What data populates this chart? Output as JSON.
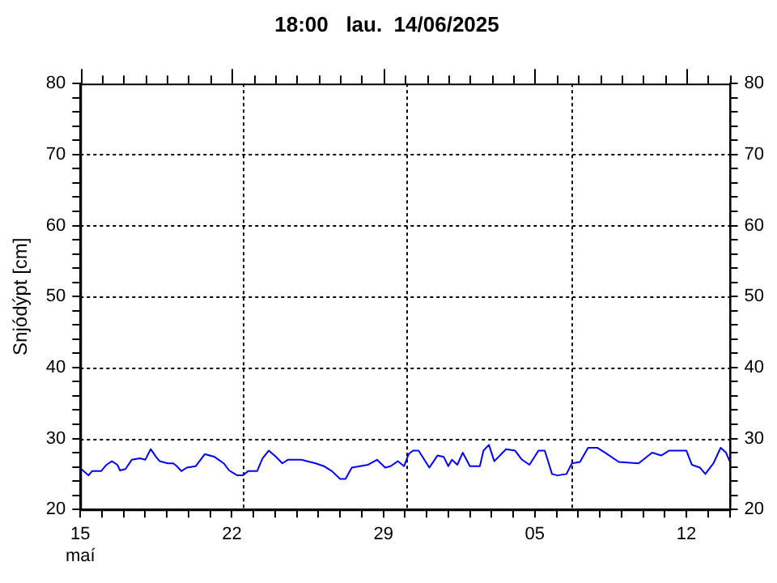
{
  "chart_data": {
    "type": "line",
    "title": "18:00   lau.  14/06/2025",
    "ylabel": "Snjódýpt [cm]",
    "x": [
      "2025-05-15T01:00",
      "2025-05-15T09:00",
      "2025-05-15T13:00",
      "2025-05-15T23:00",
      "2025-05-16T05:00",
      "2025-05-16T11:00",
      "2025-05-16T17:00",
      "2025-05-16T20:00",
      "2025-05-17T02:00",
      "2025-05-17T09:00",
      "2025-05-17T18:00",
      "2025-05-18T00:00",
      "2025-05-18T06:00",
      "2025-05-18T12:00",
      "2025-05-18T16:00",
      "2025-05-19T01:00",
      "2025-05-19T07:00",
      "2025-05-19T11:00",
      "2025-05-19T16:00",
      "2025-05-19T22:00",
      "2025-05-20T08:00",
      "2025-05-20T18:00",
      "2025-05-21T05:00",
      "2025-05-21T15:00",
      "2025-05-21T21:00",
      "2025-05-22T06:00",
      "2025-05-22T12:00",
      "2025-05-22T18:00",
      "2025-05-23T04:00",
      "2025-05-23T10:00",
      "2025-05-23T17:00",
      "2025-05-24T01:00",
      "2025-05-24T08:00",
      "2025-05-24T14:00",
      "2025-05-25T05:00",
      "2025-05-25T21:00",
      "2025-05-26T06:00",
      "2025-05-26T15:00",
      "2025-05-27T00:00",
      "2025-05-27T06:00",
      "2025-05-27T13:00",
      "2025-05-27T22:00",
      "2025-05-28T07:00",
      "2025-05-28T17:00",
      "2025-05-29T02:00",
      "2025-05-29T08:00",
      "2025-05-29T16:00",
      "2025-05-29T23:00",
      "2025-05-30T04:00",
      "2025-05-30T09:00",
      "2025-05-30T15:00",
      "2025-05-31T03:00",
      "2025-05-31T12:00",
      "2025-05-31T19:00",
      "2025-06-01T00:00",
      "2025-06-01T04:00",
      "2025-06-01T10:00",
      "2025-06-01T16:00",
      "2025-06-02T00:00",
      "2025-06-02T11:00",
      "2025-06-02T15:00",
      "2025-06-02T21:00",
      "2025-06-03T03:00",
      "2025-06-03T16:00",
      "2025-06-04T02:00",
      "2025-06-04T09:00",
      "2025-06-04T18:00",
      "2025-06-05T04:00",
      "2025-06-05T11:00",
      "2025-06-05T19:00",
      "2025-06-06T01:00",
      "2025-06-06T11:00",
      "2025-06-06T17:00",
      "2025-06-07T02:00",
      "2025-06-07T11:00",
      "2025-06-07T21:00",
      "2025-06-08T06:00",
      "2025-06-08T21:00",
      "2025-06-09T19:00",
      "2025-06-10T10:00",
      "2025-06-10T20:00",
      "2025-06-11T05:00",
      "2025-06-12T00:00",
      "2025-06-12T06:00",
      "2025-06-12T15:00",
      "2025-06-12T21:00",
      "2025-06-13T06:00",
      "2025-06-13T14:00",
      "2025-06-13T20:00",
      "2025-06-14T00:00"
    ],
    "series": [
      {
        "color": "#0000ff",
        "values": [
          25.7,
          24.8,
          25.4,
          25.4,
          26.3,
          26.8,
          26.3,
          25.5,
          25.7,
          27.0,
          27.2,
          27.0,
          28.5,
          27.4,
          26.8,
          26.5,
          26.5,
          26.1,
          25.4,
          25.9,
          26.1,
          27.8,
          27.4,
          26.5,
          25.5,
          24.8,
          24.8,
          25.4,
          25.4,
          27.2,
          28.3,
          27.4,
          26.5,
          27.0,
          27.0,
          26.5,
          26.1,
          25.4,
          24.3,
          24.3,
          25.9,
          26.1,
          26.3,
          27.0,
          25.9,
          26.1,
          26.8,
          26.1,
          27.8,
          28.3,
          28.3,
          25.9,
          27.6,
          27.4,
          26.1,
          27.0,
          26.3,
          28.0,
          26.1,
          26.1,
          28.3,
          29.1,
          26.8,
          28.5,
          28.3,
          27.1,
          26.3,
          28.3,
          28.3,
          25.0,
          24.8,
          25.0,
          26.5,
          26.7,
          28.7,
          28.7,
          28.0,
          26.7,
          26.5,
          28.0,
          27.6,
          28.3,
          28.3,
          26.3,
          25.9,
          25.0,
          26.5,
          28.7,
          28.0,
          26.8
        ]
      }
    ],
    "xlim": [
      "2025-05-15",
      "2025-06-14"
    ],
    "xticks": [
      {
        "value": "2025-05-15",
        "label": "15\nmaí"
      },
      {
        "value": "2025-05-16",
        "label": null
      },
      {
        "value": "2025-05-17",
        "label": null
      },
      {
        "value": "2025-05-18",
        "label": null
      },
      {
        "value": "2025-05-19",
        "label": null
      },
      {
        "value": "2025-05-20",
        "label": null
      },
      {
        "value": "2025-05-21",
        "label": null
      },
      {
        "value": "2025-05-22",
        "label": "22"
      },
      {
        "value": "2025-05-23",
        "label": null
      },
      {
        "value": "2025-05-24",
        "label": null
      },
      {
        "value": "2025-05-25",
        "label": null
      },
      {
        "value": "2025-05-26",
        "label": null
      },
      {
        "value": "2025-05-27",
        "label": null
      },
      {
        "value": "2025-05-28",
        "label": null
      },
      {
        "value": "2025-05-29",
        "label": "29"
      },
      {
        "value": "2025-05-30",
        "label": null
      },
      {
        "value": "2025-05-31",
        "label": null
      },
      {
        "value": "2025-06-01",
        "label": null
      },
      {
        "value": "2025-06-02",
        "label": null
      },
      {
        "value": "2025-06-03",
        "label": null
      },
      {
        "value": "2025-06-04",
        "label": null
      },
      {
        "value": "2025-06-05",
        "label": "05"
      },
      {
        "value": "2025-06-06",
        "label": null
      },
      {
        "value": "2025-06-07",
        "label": null
      },
      {
        "value": "2025-06-08",
        "label": null
      },
      {
        "value": "2025-06-09",
        "label": null
      },
      {
        "value": "2025-06-10",
        "label": null
      },
      {
        "value": "2025-06-11",
        "label": null
      },
      {
        "value": "2025-06-12",
        "label": "12"
      },
      {
        "value": "2025-06-13",
        "label": null
      },
      {
        "value": "2025-06-14",
        "label": null
      }
    ],
    "ylim": [
      20,
      80
    ],
    "yticks": [
      20,
      {
        "value": 22,
        "label": null
      },
      {
        "value": 24,
        "label": null
      },
      {
        "value": 26,
        "label": null
      },
      {
        "value": 28,
        "label": null
      },
      30,
      {
        "value": 32,
        "label": null
      },
      {
        "value": 34,
        "label": null
      },
      {
        "value": 36,
        "label": null
      },
      {
        "value": 38,
        "label": null
      },
      40,
      {
        "value": 42,
        "label": null
      },
      {
        "value": 44,
        "label": null
      },
      {
        "value": 46,
        "label": null
      },
      {
        "value": 48,
        "label": null
      },
      50,
      {
        "value": 52,
        "label": null
      },
      {
        "value": 54,
        "label": null
      },
      {
        "value": 56,
        "label": null
      },
      {
        "value": 58,
        "label": null
      },
      60,
      {
        "value": 62,
        "label": null
      },
      {
        "value": 64,
        "label": null
      },
      {
        "value": 66,
        "label": null
      },
      {
        "value": 68,
        "label": null
      },
      70,
      {
        "value": 72,
        "label": null
      },
      {
        "value": 74,
        "label": null
      },
      {
        "value": 76,
        "label": null
      },
      {
        "value": 78,
        "label": null
      },
      80
    ],
    "y2lim": [
      20,
      80
    ],
    "y2ticks": [
      20,
      {
        "value": 22,
        "label": null
      },
      {
        "value": 24,
        "label": null
      },
      {
        "value": 26,
        "label": null
      },
      {
        "value": 28,
        "label": null
      },
      30,
      {
        "value": 32,
        "label": null
      },
      {
        "value": 34,
        "label": null
      },
      {
        "value": 36,
        "label": null
      },
      {
        "value": 38,
        "label": null
      },
      40,
      {
        "value": 42,
        "label": null
      },
      {
        "value": 44,
        "label": null
      },
      {
        "value": 46,
        "label": null
      },
      {
        "value": 48,
        "label": null
      },
      50,
      {
        "value": 52,
        "label": null
      },
      {
        "value": 54,
        "label": null
      },
      {
        "value": 56,
        "label": null
      },
      {
        "value": 58,
        "label": null
      },
      60,
      {
        "value": 62,
        "label": null
      },
      {
        "value": 64,
        "label": null
      },
      {
        "value": 66,
        "label": null
      },
      {
        "value": 68,
        "label": null
      },
      70,
      {
        "value": 72,
        "label": null
      },
      {
        "value": 74,
        "label": null
      },
      {
        "value": 76,
        "label": null
      },
      {
        "value": 78,
        "label": null
      },
      80
    ],
    "ref_lines": [
      {
        "axis": "x",
        "value": "2025-05-22T12:00",
        "line_style": "dotted",
        "color": "#000000"
      },
      {
        "axis": "x",
        "value": "2025-05-30T01:00",
        "line_style": "dotted",
        "color": "#000000"
      },
      {
        "axis": "x",
        "value": "2025-06-06T16:00",
        "line_style": "dotted",
        "color": "#000000"
      }
    ],
    "grid": "y",
    "legend": false,
    "marker": "none",
    "line_style": "solid"
  }
}
